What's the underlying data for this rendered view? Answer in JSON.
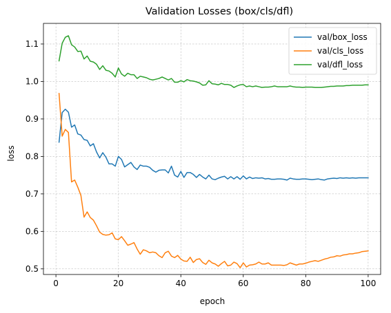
{
  "chart_data": {
    "type": "line",
    "title": "Validation Losses (box/cls/dfl)",
    "xlabel": "epoch",
    "ylabel": "loss",
    "xlim": [
      -4,
      104
    ],
    "ylim": [
      0.485,
      1.155
    ],
    "xticks": [
      0,
      20,
      40,
      60,
      80,
      100
    ],
    "yticks": [
      0.5,
      0.6,
      0.7,
      0.8,
      0.9,
      1.0,
      1.1
    ],
    "ytick_labels": [
      "0.5",
      "0.6",
      "0.7",
      "0.8",
      "0.9",
      "1.0",
      "1.1"
    ],
    "grid": true,
    "legend_position": "top-right",
    "x": [
      1,
      2,
      3,
      4,
      5,
      6,
      7,
      8,
      9,
      10,
      11,
      12,
      13,
      14,
      15,
      16,
      17,
      18,
      19,
      20,
      21,
      22,
      23,
      24,
      25,
      26,
      27,
      28,
      29,
      30,
      31,
      32,
      33,
      34,
      35,
      36,
      37,
      38,
      39,
      40,
      41,
      42,
      43,
      44,
      45,
      46,
      47,
      48,
      49,
      50,
      51,
      52,
      53,
      54,
      55,
      56,
      57,
      58,
      59,
      60,
      61,
      62,
      63,
      64,
      65,
      66,
      67,
      68,
      69,
      70,
      71,
      72,
      73,
      74,
      75,
      76,
      77,
      78,
      79,
      80,
      81,
      82,
      83,
      84,
      85,
      86,
      87,
      88,
      89,
      90,
      91,
      92,
      93,
      94,
      95,
      96,
      97,
      98,
      99,
      100
    ],
    "series": [
      {
        "name": "val/box_loss",
        "color": "#1f77b4",
        "values": [
          0.838,
          0.917,
          0.926,
          0.918,
          0.878,
          0.884,
          0.86,
          0.857,
          0.845,
          0.843,
          0.828,
          0.834,
          0.812,
          0.796,
          0.81,
          0.798,
          0.78,
          0.78,
          0.774,
          0.8,
          0.792,
          0.772,
          0.778,
          0.784,
          0.772,
          0.765,
          0.777,
          0.774,
          0.774,
          0.771,
          0.763,
          0.758,
          0.763,
          0.764,
          0.764,
          0.756,
          0.774,
          0.75,
          0.745,
          0.76,
          0.744,
          0.757,
          0.757,
          0.752,
          0.744,
          0.752,
          0.745,
          0.74,
          0.75,
          0.74,
          0.738,
          0.742,
          0.745,
          0.747,
          0.74,
          0.746,
          0.74,
          0.746,
          0.739,
          0.748,
          0.74,
          0.745,
          0.741,
          0.743,
          0.742,
          0.743,
          0.74,
          0.741,
          0.739,
          0.739,
          0.74,
          0.74,
          0.739,
          0.737,
          0.742,
          0.74,
          0.739,
          0.739,
          0.74,
          0.74,
          0.739,
          0.738,
          0.739,
          0.74,
          0.738,
          0.737,
          0.74,
          0.741,
          0.742,
          0.741,
          0.743,
          0.742,
          0.743,
          0.742,
          0.743,
          0.742,
          0.743,
          0.743,
          0.743,
          0.743
        ]
      },
      {
        "name": "val/cls_loss",
        "color": "#ff7f0e",
        "values": [
          0.968,
          0.854,
          0.872,
          0.864,
          0.732,
          0.737,
          0.718,
          0.696,
          0.638,
          0.652,
          0.637,
          0.63,
          0.615,
          0.598,
          0.592,
          0.59,
          0.591,
          0.596,
          0.58,
          0.578,
          0.586,
          0.575,
          0.563,
          0.566,
          0.57,
          0.553,
          0.539,
          0.551,
          0.548,
          0.543,
          0.545,
          0.543,
          0.535,
          0.53,
          0.543,
          0.547,
          0.534,
          0.53,
          0.536,
          0.526,
          0.521,
          0.52,
          0.531,
          0.517,
          0.525,
          0.527,
          0.517,
          0.512,
          0.523,
          0.516,
          0.513,
          0.507,
          0.514,
          0.52,
          0.508,
          0.51,
          0.518,
          0.514,
          0.503,
          0.516,
          0.505,
          0.51,
          0.511,
          0.513,
          0.518,
          0.513,
          0.513,
          0.516,
          0.51,
          0.51,
          0.51,
          0.51,
          0.509,
          0.511,
          0.516,
          0.513,
          0.51,
          0.513,
          0.513,
          0.515,
          0.518,
          0.52,
          0.522,
          0.52,
          0.523,
          0.526,
          0.528,
          0.531,
          0.532,
          0.535,
          0.534,
          0.537,
          0.538,
          0.54,
          0.54,
          0.542,
          0.543,
          0.546,
          0.547,
          0.548
        ]
      },
      {
        "name": "val/dfl_loss",
        "color": "#2ca02c",
        "values": [
          1.055,
          1.102,
          1.118,
          1.122,
          1.098,
          1.092,
          1.08,
          1.081,
          1.06,
          1.068,
          1.054,
          1.052,
          1.046,
          1.032,
          1.042,
          1.03,
          1.028,
          1.022,
          1.012,
          1.036,
          1.02,
          1.014,
          1.022,
          1.018,
          1.018,
          1.008,
          1.014,
          1.012,
          1.01,
          1.006,
          1.004,
          1.006,
          1.008,
          1.012,
          1.008,
          1.004,
          1.008,
          0.998,
          0.998,
          1.002,
          0.999,
          1.005,
          1.002,
          1.001,
          0.999,
          0.996,
          0.99,
          0.991,
          1.002,
          0.994,
          0.993,
          0.991,
          0.995,
          0.992,
          0.992,
          0.99,
          0.984,
          0.988,
          0.991,
          0.992,
          0.986,
          0.988,
          0.986,
          0.988,
          0.986,
          0.984,
          0.985,
          0.985,
          0.986,
          0.988,
          0.986,
          0.986,
          0.986,
          0.986,
          0.988,
          0.986,
          0.985,
          0.985,
          0.984,
          0.985,
          0.985,
          0.985,
          0.984,
          0.984,
          0.984,
          0.985,
          0.986,
          0.987,
          0.987,
          0.988,
          0.988,
          0.988,
          0.989,
          0.989,
          0.99,
          0.99,
          0.99,
          0.99,
          0.991,
          0.991
        ]
      }
    ]
  }
}
